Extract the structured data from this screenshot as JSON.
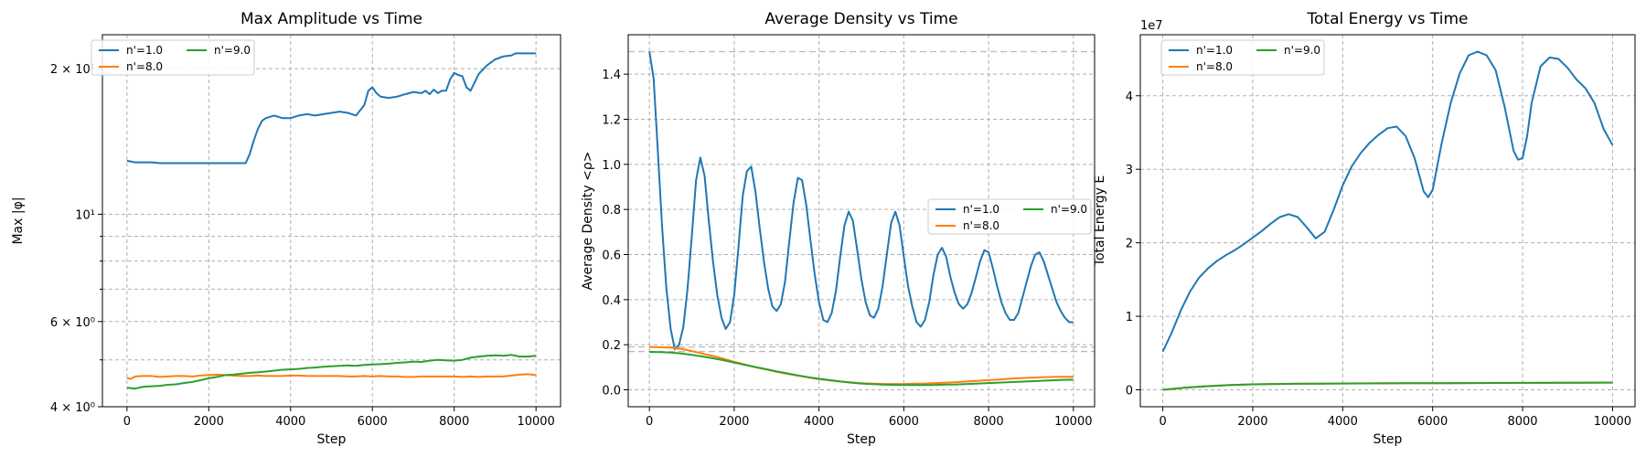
{
  "colors": {
    "n1": "#1f77b4",
    "n8": "#ff7f0e",
    "n9": "#2ca02c",
    "grid": "#b0b0b0",
    "ref": "#bbbbbb"
  },
  "chart_data": [
    {
      "type": "line",
      "title": "Max Amplitude vs Time",
      "xlabel": "Step",
      "ylabel": "Max |φ|",
      "yscale": "log",
      "xlim": [
        -600,
        10600
      ],
      "ylim": [
        4.0,
        23.5
      ],
      "xticks": [
        0,
        2000,
        4000,
        6000,
        8000,
        10000
      ],
      "yticks_major": [
        {
          "value": 4,
          "label": "4 × 10⁰"
        },
        {
          "value": 6,
          "label": "6 × 10⁰"
        },
        {
          "value": 10,
          "label": "10¹"
        },
        {
          "value": 20,
          "label": "2 × 10¹"
        }
      ],
      "yticks_minor": [
        5,
        7,
        8,
        9
      ],
      "grid": true,
      "legend": {
        "placement": "top-left",
        "columns": 2
      },
      "series": [
        {
          "name": "n'=1.0",
          "color_key": "n1",
          "x": [
            0,
            200,
            400,
            600,
            800,
            1000,
            1500,
            2000,
            2500,
            2900,
            3000,
            3100,
            3200,
            3300,
            3400,
            3600,
            3800,
            4000,
            4200,
            4400,
            4600,
            4800,
            5000,
            5200,
            5400,
            5600,
            5800,
            5900,
            6000,
            6100,
            6200,
            6400,
            6600,
            6800,
            7000,
            7200,
            7300,
            7400,
            7500,
            7600,
            7700,
            7800,
            7900,
            8000,
            8100,
            8200,
            8300,
            8400,
            8600,
            8800,
            9000,
            9200,
            9400,
            9500,
            9600,
            9800,
            10000
          ],
          "y": [
            12.9,
            12.8,
            12.8,
            12.8,
            12.75,
            12.75,
            12.75,
            12.75,
            12.75,
            12.75,
            13.3,
            14.2,
            15.0,
            15.6,
            15.8,
            16.0,
            15.8,
            15.8,
            16.0,
            16.1,
            16.0,
            16.1,
            16.2,
            16.3,
            16.2,
            16.0,
            16.8,
            18.0,
            18.3,
            17.8,
            17.5,
            17.4,
            17.5,
            17.7,
            17.9,
            17.8,
            18.0,
            17.7,
            18.1,
            17.8,
            18.0,
            18.0,
            19.0,
            19.6,
            19.4,
            19.3,
            18.3,
            18.0,
            19.5,
            20.3,
            20.9,
            21.2,
            21.3,
            21.5,
            21.5,
            21.5,
            21.5
          ]
        },
        {
          "name": "n'=8.0",
          "color_key": "n8",
          "x": [
            0,
            100,
            200,
            400,
            600,
            800,
            1000,
            1200,
            1400,
            1600,
            1800,
            2000,
            2200,
            2400,
            2600,
            2800,
            3000,
            3200,
            3400,
            3600,
            3800,
            4000,
            4200,
            4400,
            4600,
            4800,
            5000,
            5200,
            5400,
            5600,
            5800,
            6000,
            6200,
            6400,
            6600,
            6800,
            7000,
            7200,
            7400,
            7600,
            7800,
            8000,
            8200,
            8400,
            8600,
            8800,
            9000,
            9200,
            9400,
            9600,
            9800,
            10000
          ],
          "y": [
            4.58,
            4.57,
            4.62,
            4.63,
            4.63,
            4.61,
            4.62,
            4.63,
            4.63,
            4.62,
            4.64,
            4.65,
            4.66,
            4.65,
            4.64,
            4.63,
            4.63,
            4.64,
            4.63,
            4.63,
            4.63,
            4.64,
            4.64,
            4.63,
            4.63,
            4.63,
            4.63,
            4.63,
            4.62,
            4.62,
            4.63,
            4.62,
            4.63,
            4.62,
            4.62,
            4.61,
            4.61,
            4.62,
            4.62,
            4.62,
            4.62,
            4.62,
            4.61,
            4.62,
            4.61,
            4.62,
            4.62,
            4.62,
            4.64,
            4.66,
            4.67,
            4.65
          ]
        },
        {
          "name": "n'=9.0",
          "color_key": "n9",
          "x": [
            0,
            200,
            400,
            600,
            800,
            1000,
            1200,
            1400,
            1600,
            1800,
            2000,
            2200,
            2400,
            2600,
            2800,
            3000,
            3200,
            3400,
            3600,
            3800,
            4000,
            4200,
            4400,
            4600,
            4800,
            5000,
            5200,
            5400,
            5600,
            5800,
            6000,
            6200,
            6400,
            6600,
            6800,
            7000,
            7200,
            7400,
            7600,
            7800,
            8000,
            8200,
            8400,
            8600,
            8800,
            9000,
            9200,
            9400,
            9600,
            9800,
            10000
          ],
          "y": [
            4.38,
            4.36,
            4.4,
            4.41,
            4.42,
            4.44,
            4.45,
            4.48,
            4.5,
            4.54,
            4.58,
            4.61,
            4.65,
            4.66,
            4.68,
            4.7,
            4.71,
            4.73,
            4.75,
            4.77,
            4.78,
            4.79,
            4.81,
            4.82,
            4.84,
            4.85,
            4.86,
            4.87,
            4.86,
            4.88,
            4.89,
            4.9,
            4.91,
            4.93,
            4.94,
            4.96,
            4.95,
            4.98,
            5.0,
            4.99,
            4.98,
            5.0,
            5.05,
            5.08,
            5.1,
            5.11,
            5.1,
            5.12,
            5.08,
            5.08,
            5.1
          ]
        }
      ]
    },
    {
      "type": "line",
      "title": "Average Density vs Time",
      "xlabel": "Step",
      "ylabel": "Average Density <ρ>",
      "yscale": "linear",
      "xlim": [
        -500,
        10500
      ],
      "ylim": [
        -0.075,
        1.575
      ],
      "xticks": [
        0,
        2000,
        4000,
        6000,
        8000,
        10000
      ],
      "yticks": [
        0.0,
        0.2,
        0.4,
        0.6,
        0.8,
        1.0,
        1.2,
        1.4
      ],
      "ref_lines": [
        1.5,
        0.19,
        0.17
      ],
      "grid": true,
      "legend": {
        "placement": "center-right",
        "columns": 2
      },
      "series": [
        {
          "name": "n'=1.0",
          "color_key": "n1",
          "x": [
            0,
            100,
            200,
            300,
            400,
            500,
            600,
            700,
            800,
            900,
            1000,
            1100,
            1200,
            1300,
            1400,
            1500,
            1600,
            1700,
            1800,
            1900,
            2000,
            2100,
            2200,
            2300,
            2400,
            2500,
            2600,
            2700,
            2800,
            2900,
            3000,
            3100,
            3200,
            3300,
            3400,
            3500,
            3600,
            3700,
            3800,
            3900,
            4000,
            4100,
            4200,
            4300,
            4400,
            4500,
            4600,
            4700,
            4800,
            4900,
            5000,
            5100,
            5200,
            5300,
            5400,
            5500,
            5600,
            5700,
            5800,
            5900,
            6000,
            6100,
            6200,
            6300,
            6400,
            6500,
            6600,
            6700,
            6800,
            6900,
            7000,
            7100,
            7200,
            7300,
            7400,
            7500,
            7600,
            7700,
            7800,
            7900,
            8000,
            8100,
            8200,
            8300,
            8400,
            8500,
            8600,
            8700,
            8800,
            8900,
            9000,
            9100,
            9200,
            9300,
            9400,
            9500,
            9600,
            9700,
            9800,
            9900,
            10000
          ],
          "y": [
            1.5,
            1.38,
            1.05,
            0.72,
            0.45,
            0.27,
            0.18,
            0.2,
            0.28,
            0.45,
            0.68,
            0.93,
            1.03,
            0.95,
            0.75,
            0.57,
            0.42,
            0.32,
            0.27,
            0.3,
            0.42,
            0.63,
            0.86,
            0.97,
            0.99,
            0.88,
            0.72,
            0.57,
            0.45,
            0.37,
            0.35,
            0.38,
            0.48,
            0.66,
            0.83,
            0.94,
            0.93,
            0.82,
            0.66,
            0.51,
            0.39,
            0.31,
            0.3,
            0.34,
            0.44,
            0.59,
            0.73,
            0.79,
            0.75,
            0.62,
            0.49,
            0.39,
            0.33,
            0.32,
            0.36,
            0.46,
            0.6,
            0.74,
            0.79,
            0.73,
            0.59,
            0.46,
            0.37,
            0.3,
            0.28,
            0.31,
            0.39,
            0.51,
            0.6,
            0.63,
            0.59,
            0.5,
            0.43,
            0.38,
            0.36,
            0.38,
            0.43,
            0.5,
            0.57,
            0.62,
            0.61,
            0.54,
            0.46,
            0.39,
            0.34,
            0.31,
            0.31,
            0.34,
            0.41,
            0.48,
            0.55,
            0.6,
            0.61,
            0.57,
            0.51,
            0.45,
            0.39,
            0.35,
            0.32,
            0.3,
            0.3
          ]
        },
        {
          "name": "n'=8.0",
          "color_key": "n8",
          "x": [
            0,
            250,
            500,
            750,
            1000,
            1250,
            1500,
            1750,
            2000,
            2250,
            2500,
            2750,
            3000,
            3250,
            3500,
            3750,
            4000,
            4250,
            4500,
            4750,
            5000,
            5250,
            5500,
            5750,
            6000,
            6250,
            6500,
            6750,
            7000,
            7250,
            7500,
            7750,
            8000,
            8250,
            8500,
            8750,
            9000,
            9250,
            9500,
            9750,
            10000
          ],
          "y": [
            0.19,
            0.189,
            0.187,
            0.182,
            0.172,
            0.161,
            0.15,
            0.138,
            0.124,
            0.112,
            0.1,
            0.09,
            0.08,
            0.071,
            0.063,
            0.055,
            0.048,
            0.042,
            0.037,
            0.033,
            0.029,
            0.027,
            0.026,
            0.026,
            0.026,
            0.027,
            0.028,
            0.03,
            0.032,
            0.034,
            0.037,
            0.04,
            0.043,
            0.046,
            0.049,
            0.052,
            0.054,
            0.056,
            0.057,
            0.058,
            0.058
          ]
        },
        {
          "name": "n'=9.0",
          "color_key": "n9",
          "x": [
            0,
            250,
            500,
            750,
            1000,
            1250,
            1500,
            1750,
            2000,
            2250,
            2500,
            2750,
            3000,
            3250,
            3500,
            3750,
            4000,
            4250,
            4500,
            4750,
            5000,
            5250,
            5500,
            5750,
            6000,
            6250,
            6500,
            6750,
            7000,
            7250,
            7500,
            7750,
            8000,
            8250,
            8500,
            8750,
            9000,
            9250,
            9500,
            9750,
            10000
          ],
          "y": [
            0.168,
            0.167,
            0.165,
            0.161,
            0.155,
            0.148,
            0.14,
            0.131,
            0.121,
            0.111,
            0.101,
            0.092,
            0.082,
            0.073,
            0.064,
            0.056,
            0.049,
            0.043,
            0.037,
            0.032,
            0.028,
            0.025,
            0.023,
            0.022,
            0.021,
            0.021,
            0.021,
            0.022,
            0.023,
            0.024,
            0.026,
            0.028,
            0.03,
            0.032,
            0.034,
            0.036,
            0.038,
            0.04,
            0.042,
            0.044,
            0.045
          ]
        }
      ]
    },
    {
      "type": "line",
      "title": "Total Energy vs Time",
      "xlabel": "Step",
      "ylabel": "Total Energy E",
      "yscale": "linear",
      "offset_label": "1e7",
      "xlim": [
        -500,
        10500
      ],
      "ylim": [
        -0.23,
        4.83
      ],
      "xticks": [
        0,
        2000,
        4000,
        6000,
        8000,
        10000
      ],
      "yticks": [
        0,
        1,
        2,
        3,
        4
      ],
      "grid": true,
      "legend": {
        "placement": "top-left",
        "columns": 2
      },
      "series": [
        {
          "name": "n'=1.0",
          "color_key": "n1",
          "x": [
            0,
            200,
            400,
            600,
            800,
            1000,
            1200,
            1400,
            1600,
            1800,
            2000,
            2200,
            2400,
            2600,
            2800,
            3000,
            3200,
            3400,
            3600,
            3800,
            4000,
            4200,
            4400,
            4600,
            4800,
            5000,
            5200,
            5400,
            5600,
            5800,
            5900,
            6000,
            6200,
            6400,
            6600,
            6800,
            7000,
            7200,
            7400,
            7600,
            7800,
            7900,
            8000,
            8100,
            8200,
            8400,
            8600,
            8800,
            9000,
            9200,
            9400,
            9600,
            9800,
            10000
          ],
          "y": [
            0.52,
            0.78,
            1.08,
            1.33,
            1.52,
            1.65,
            1.75,
            1.83,
            1.9,
            1.98,
            2.07,
            2.16,
            2.26,
            2.35,
            2.39,
            2.35,
            2.21,
            2.06,
            2.15,
            2.45,
            2.78,
            3.04,
            3.22,
            3.36,
            3.47,
            3.56,
            3.58,
            3.45,
            3.15,
            2.7,
            2.62,
            2.72,
            3.35,
            3.9,
            4.3,
            4.55,
            4.6,
            4.55,
            4.35,
            3.85,
            3.25,
            3.13,
            3.15,
            3.45,
            3.9,
            4.4,
            4.52,
            4.5,
            4.38,
            4.22,
            4.1,
            3.9,
            3.55,
            3.33
          ]
        },
        {
          "name": "n'=8.0",
          "color_key": "n8",
          "x": [
            0,
            500,
            1000,
            1500,
            2000,
            2500,
            3000,
            3500,
            4000,
            4500,
            5000,
            5500,
            6000,
            6500,
            7000,
            7500,
            8000,
            8500,
            9000,
            9500,
            10000
          ],
          "y": [
            0.0,
            0.03,
            0.05,
            0.065,
            0.075,
            0.08,
            0.083,
            0.085,
            0.087,
            0.088,
            0.089,
            0.09,
            0.091,
            0.092,
            0.093,
            0.094,
            0.095,
            0.096,
            0.097,
            0.098,
            0.099
          ]
        },
        {
          "name": "n'=9.0",
          "color_key": "n9",
          "x": [
            0,
            500,
            1000,
            1500,
            2000,
            2500,
            3000,
            3500,
            4000,
            4500,
            5000,
            5500,
            6000,
            6500,
            7000,
            7500,
            8000,
            8500,
            9000,
            9500,
            10000
          ],
          "y": [
            0.0,
            0.03,
            0.05,
            0.065,
            0.074,
            0.079,
            0.082,
            0.084,
            0.086,
            0.087,
            0.088,
            0.089,
            0.09,
            0.091,
            0.092,
            0.093,
            0.094,
            0.095,
            0.096,
            0.097,
            0.098
          ]
        }
      ]
    }
  ]
}
